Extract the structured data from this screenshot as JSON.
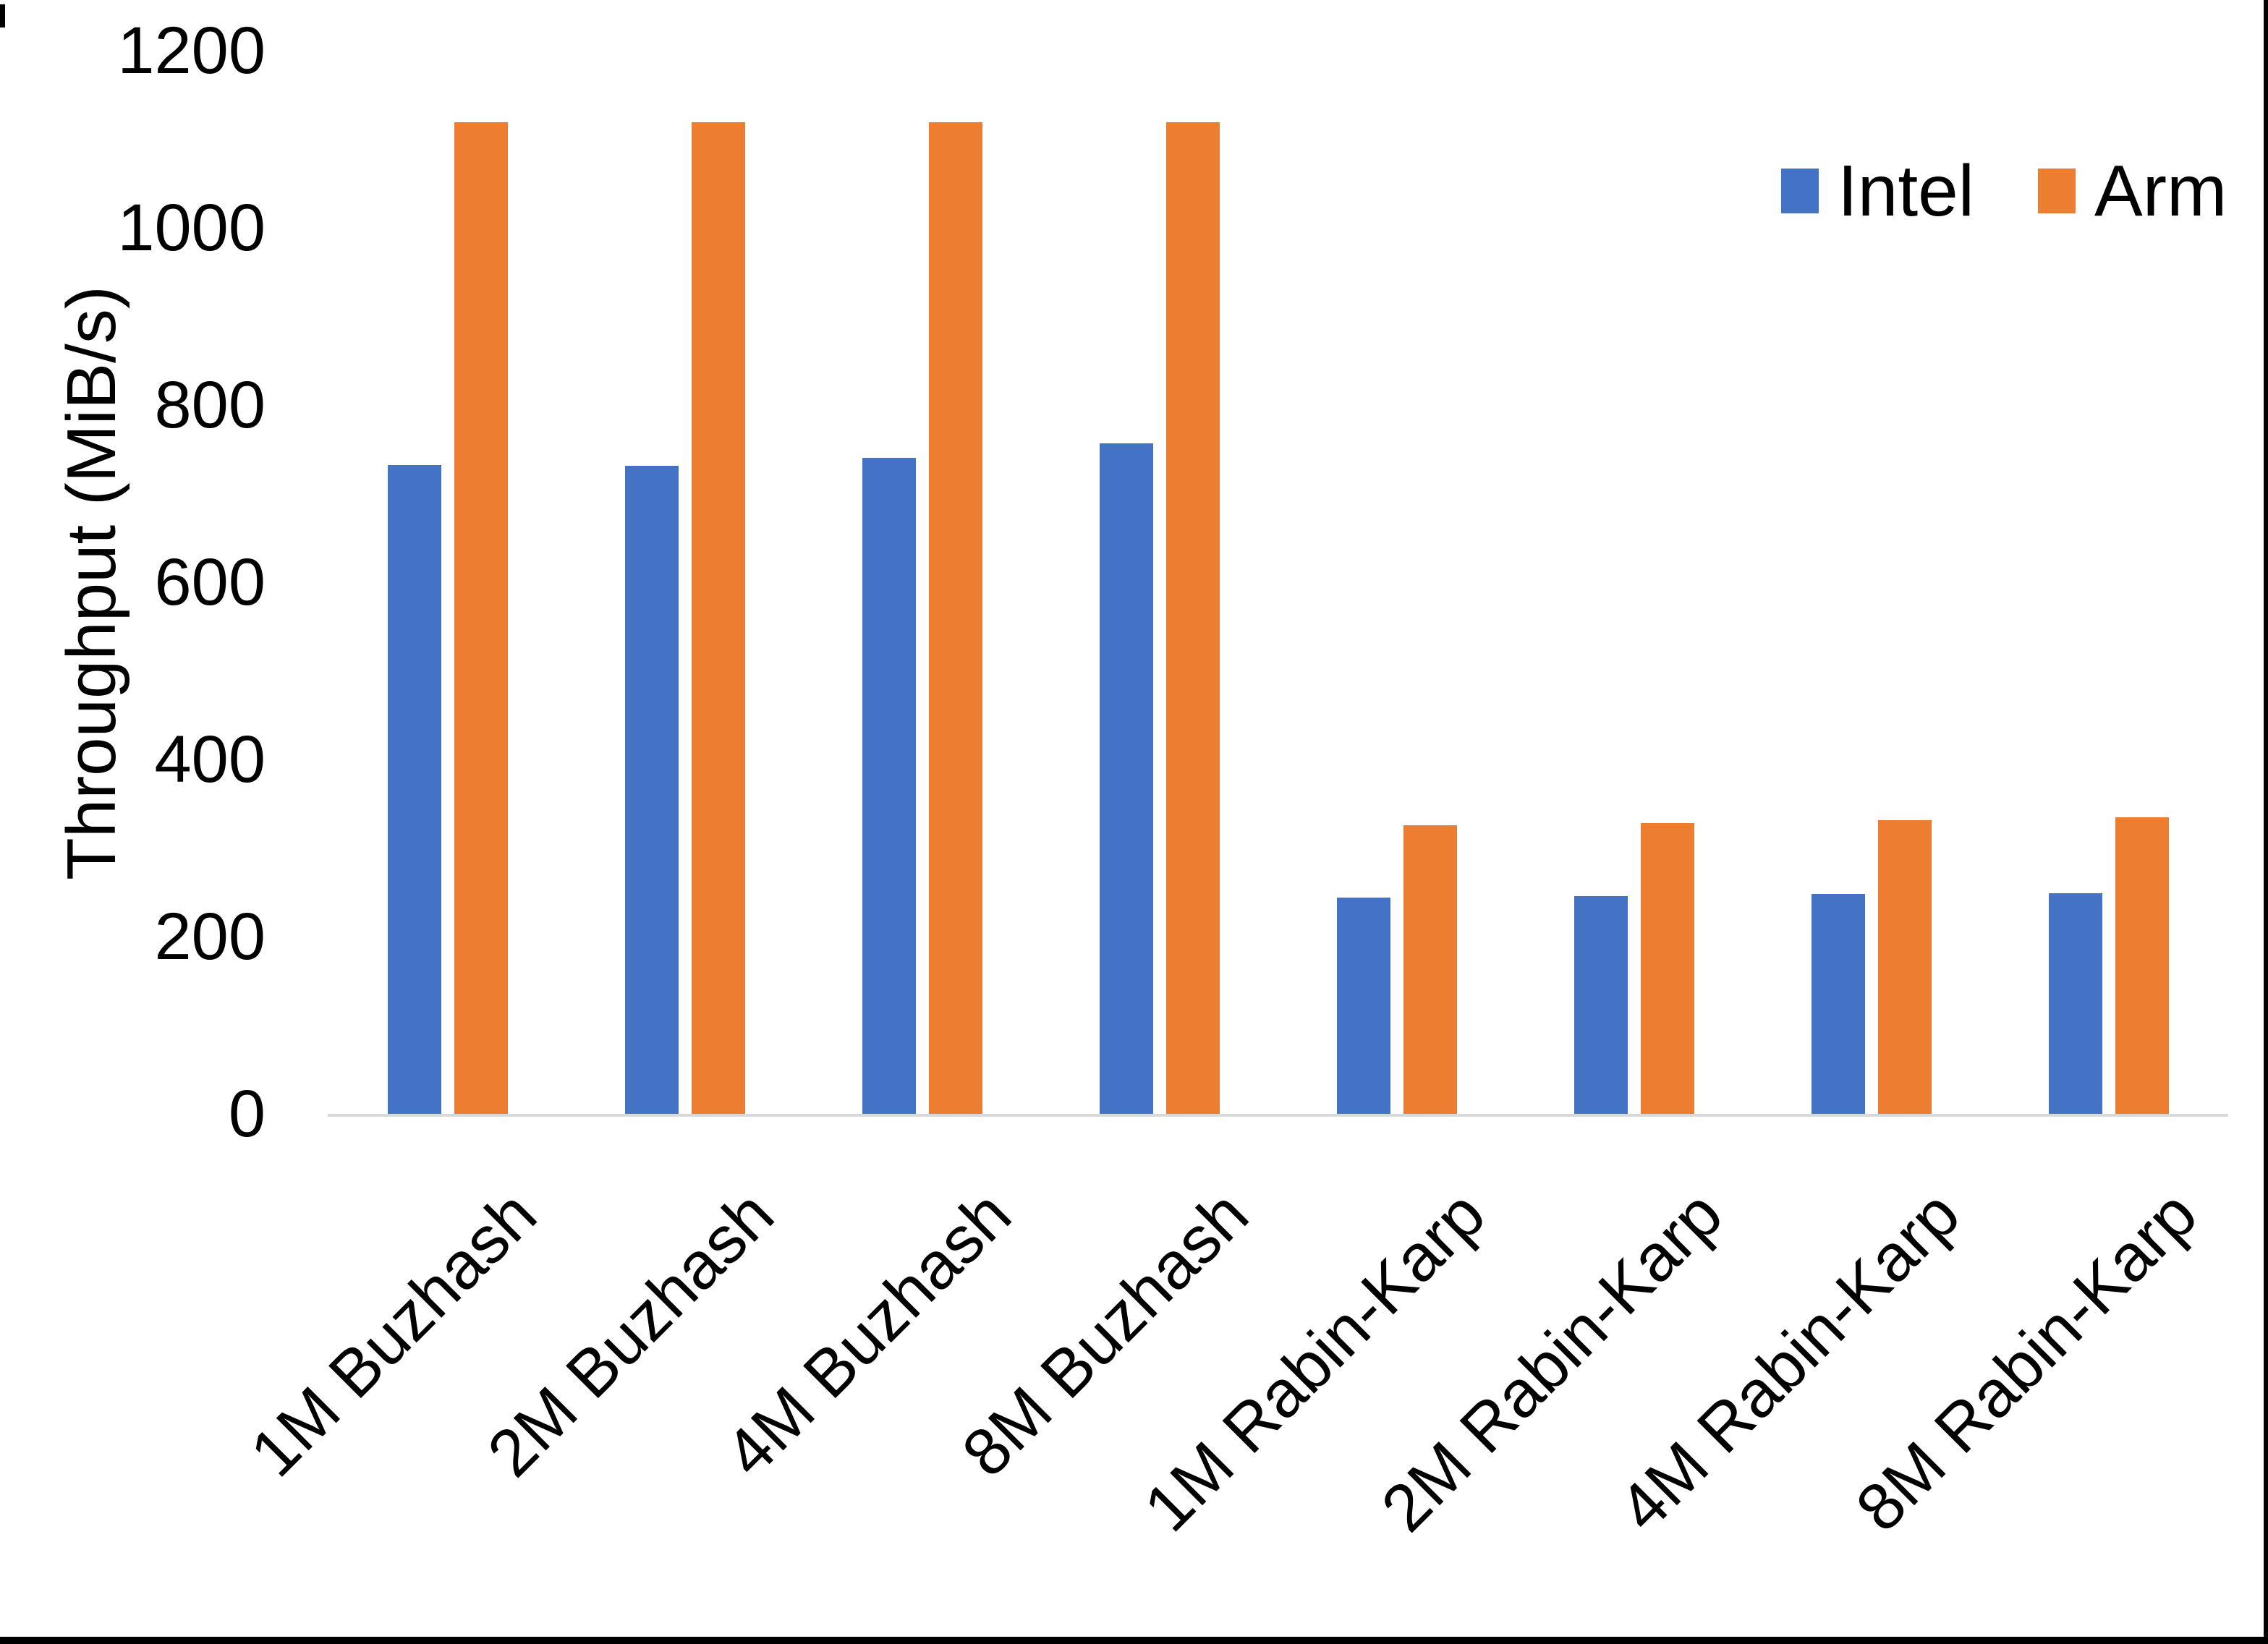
{
  "chart_data": {
    "type": "bar",
    "title": "",
    "xlabel": "",
    "ylabel": "Throughput (MiB/s)",
    "ylim": [
      0,
      1200
    ],
    "yticks": [
      0,
      200,
      400,
      600,
      800,
      1000,
      1200
    ],
    "grid": false,
    "legend_position": "top-right",
    "categories": [
      "1M Buzhash",
      "2M Buzhash",
      "4M Buzhash",
      "8M Buzhash",
      "1M Rabin-Karp",
      "2M Rabin-Karp",
      "4M Rabin-Karp",
      "8M Rabin-Karp"
    ],
    "series": [
      {
        "name": "Intel",
        "color": "#4472C4",
        "values": [
          734,
          733,
          742,
          758,
          246,
          247,
          250,
          251
        ]
      },
      {
        "name": "Arm",
        "color": "#ED7D31",
        "values": [
          1121,
          1121,
          1121,
          1121,
          327,
          330,
          333,
          336
        ]
      }
    ],
    "axis_line_color": "#D9D9D9",
    "text_color": "#000000",
    "background_color": "#FFFFFF",
    "frame_edge_color": "#000000"
  }
}
